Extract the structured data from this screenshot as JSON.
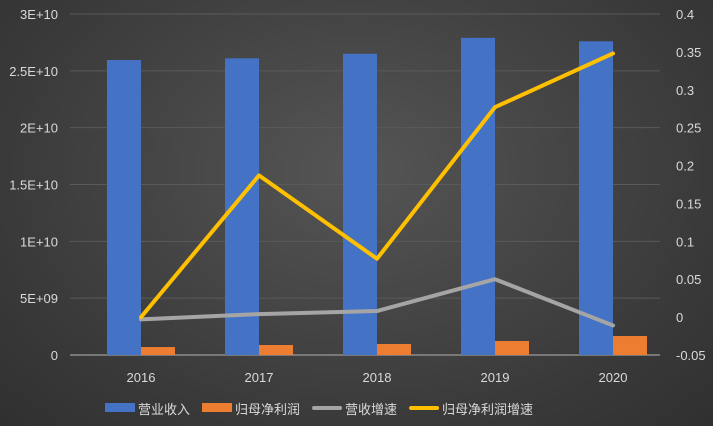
{
  "chart_data": {
    "type": "bar+line",
    "categories": [
      "2016",
      "2017",
      "2018",
      "2019",
      "2020"
    ],
    "series": [
      {
        "name": "营业收入",
        "type": "bar",
        "axis": "left",
        "color": "#4472c4",
        "values": [
          25950000000.0,
          26100000000.0,
          26500000000.0,
          27900000000.0,
          27600000000.0
        ]
      },
      {
        "name": "归母净利润",
        "type": "bar",
        "axis": "left",
        "color": "#ed7d31",
        "values": [
          700000000.0,
          880000000.0,
          970000000.0,
          1230000000.0,
          1670000000.0
        ]
      },
      {
        "name": "营收增速",
        "type": "line",
        "axis": "right",
        "color": "#a5a5a5",
        "values": [
          -0.003,
          0.004,
          0.008,
          0.05,
          -0.011
        ]
      },
      {
        "name": "归母净利润增速",
        "type": "line",
        "axis": "right",
        "color": "#ffc000",
        "values": [
          0.0,
          0.187,
          0.077,
          0.277,
          0.348
        ]
      }
    ],
    "left_axis": {
      "min": 0,
      "max": 30000000000.0,
      "ticks": [
        "0",
        "5E+09",
        "1E+10",
        "1.5E+10",
        "2E+10",
        "2.5E+10",
        "3E+10"
      ]
    },
    "right_axis": {
      "min": -0.05,
      "max": 0.4,
      "ticks": [
        "-0.05",
        "0",
        "0.05",
        "0.1",
        "0.15",
        "0.2",
        "0.25",
        "0.3",
        "0.35",
        "0.4"
      ]
    },
    "grid": true,
    "legend": "bottom"
  }
}
